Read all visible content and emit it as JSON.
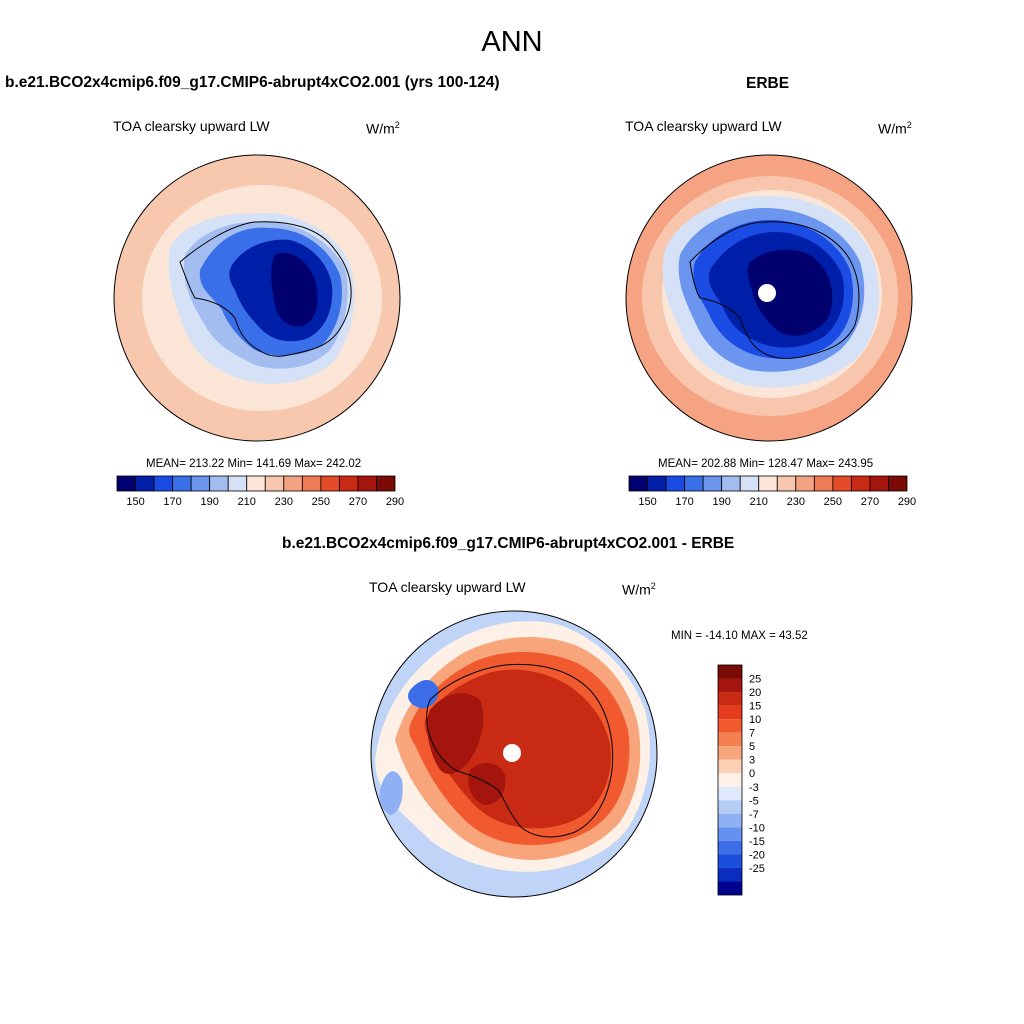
{
  "page_title": "ANN",
  "panels": [
    {
      "title": "b.e21.BCO2x4cmip6.f09_g17.CMIP6-abrupt4xCO2.001 (yrs 100-124)",
      "variable": "TOA clearsky upward LW",
      "units_base": "W/m",
      "units_exp": "2",
      "stats": "MEAN= 213.22  Min= 141.69  Max= 242.02"
    },
    {
      "title": "ERBE",
      "variable": "TOA clearsky upward LW",
      "units_base": "W/m",
      "units_exp": "2",
      "stats": "MEAN= 202.88  Min= 128.47  Max= 243.95"
    },
    {
      "title": "b.e21.BCO2x4cmip6.f09_g17.CMIP6-abrupt4xCO2.001 - ERBE",
      "variable": "TOA clearsky upward LW",
      "units_base": "W/m",
      "units_exp": "2",
      "stats": "MIN = -14.10 MAX =  43.52"
    }
  ],
  "chart_data": [
    {
      "type": "heatmap",
      "projection": "south-polar-stereographic",
      "title": "b.e21.BCO2x4cmip6.f09_g17.CMIP6-abrupt4xCO2.001 (yrs 100-124)",
      "variable": "TOA clearsky upward LW",
      "units": "W/m2",
      "mean": 213.22,
      "min": 141.69,
      "max": 242.02,
      "colorbar_orientation": "horizontal",
      "colorbar_tick_labels": [
        "150",
        "170",
        "190",
        "210",
        "230",
        "250",
        "270",
        "290"
      ],
      "colorbar_colors": [
        "#00006e",
        "#001fa8",
        "#1a4be3",
        "#3a6fea",
        "#6b95ee",
        "#a3bdf1",
        "#d4e1f7",
        "#fbe5d7",
        "#f8c6ad",
        "#f4a382",
        "#ee7b55",
        "#e64b28",
        "#c92a14",
        "#a3150d",
        "#790a05"
      ]
    },
    {
      "type": "heatmap",
      "projection": "south-polar-stereographic",
      "title": "ERBE",
      "variable": "TOA clearsky upward LW",
      "units": "W/m2",
      "mean": 202.88,
      "min": 128.47,
      "max": 243.95,
      "colorbar_orientation": "horizontal",
      "colorbar_tick_labels": [
        "150",
        "170",
        "190",
        "210",
        "230",
        "250",
        "270",
        "290"
      ],
      "colorbar_colors": [
        "#00006e",
        "#001fa8",
        "#1a4be3",
        "#3a6fea",
        "#6b95ee",
        "#a3bdf1",
        "#d4e1f7",
        "#fbe5d7",
        "#f8c6ad",
        "#f4a382",
        "#ee7b55",
        "#e64b28",
        "#c92a14",
        "#a3150d",
        "#790a05"
      ]
    },
    {
      "type": "heatmap",
      "projection": "south-polar-stereographic",
      "title": "b.e21.BCO2x4cmip6.f09_g17.CMIP6-abrupt4xCO2.001 - ERBE",
      "variable": "TOA clearsky upward LW",
      "units": "W/m2",
      "min": -14.1,
      "max": 43.52,
      "colorbar_orientation": "vertical",
      "colorbar_tick_labels": [
        "25",
        "20",
        "15",
        "10",
        "7",
        "5",
        "3",
        "0",
        "-3",
        "-5",
        "-7",
        "-10",
        "-15",
        "-20",
        "-25"
      ],
      "colorbar_colors": [
        "#790a05",
        "#a3150d",
        "#c92a14",
        "#e23c1c",
        "#f05a2e",
        "#f5804f",
        "#f8a57c",
        "#fbd0b5",
        "#fdf0e6",
        "#dfe9fb",
        "#b6cdf6",
        "#8fb0f3",
        "#6591f0",
        "#3b6ee8",
        "#1b4ddd",
        "#0a2dbf",
        "#00008f"
      ]
    }
  ]
}
